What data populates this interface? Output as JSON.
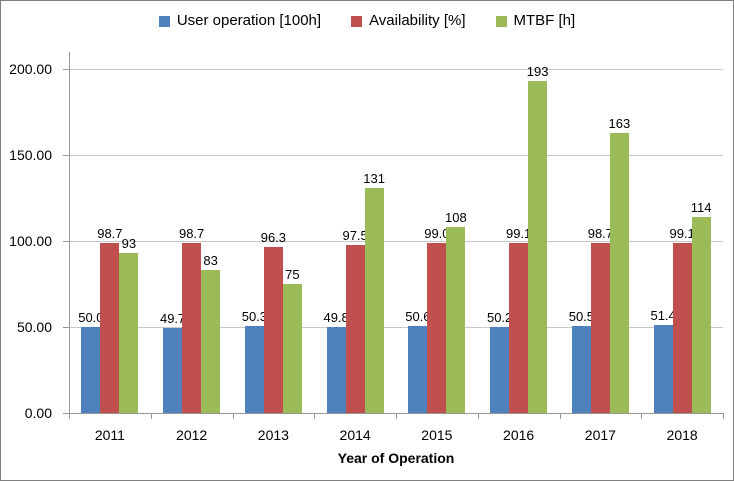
{
  "legend": {
    "items": [
      {
        "label": "User operation [100h]",
        "color": "#4F81BD"
      },
      {
        "label": "Availability [%]",
        "color": "#C0504D"
      },
      {
        "label": "MTBF [h]",
        "color": "#9BBB59"
      }
    ]
  },
  "chart_data": {
    "type": "bar",
    "categories": [
      "2011",
      "2012",
      "2013",
      "2014",
      "2015",
      "2016",
      "2017",
      "2018"
    ],
    "series": [
      {
        "name": "User operation [100h]",
        "color": "#4F81BD",
        "values": [
          50.0,
          49.7,
          50.3,
          49.8,
          50.6,
          50.2,
          50.5,
          51.4
        ],
        "labels": [
          "50.0",
          "49.7",
          "50.3",
          "49.8",
          "50.6",
          "50.2",
          "50.5",
          "51.4"
        ]
      },
      {
        "name": "Availability [%]",
        "color": "#C0504D",
        "values": [
          98.7,
          98.7,
          96.3,
          97.5,
          99.0,
          99.1,
          98.7,
          99.1
        ],
        "labels": [
          "98.7",
          "98.7",
          "96.3",
          "97.5",
          "99.0",
          "99.1",
          "98.7",
          "99.1"
        ]
      },
      {
        "name": "MTBF [h]",
        "color": "#9BBB59",
        "values": [
          93,
          83,
          75,
          131,
          108,
          193,
          163,
          114
        ],
        "labels": [
          "93",
          "83",
          "75",
          "131",
          "108",
          "193",
          "163",
          "114"
        ]
      }
    ],
    "xlabel": "Year of Operation",
    "ylabel": "",
    "ylim": [
      0,
      200
    ],
    "y_tick_values": [
      0,
      50,
      100,
      150,
      200
    ],
    "y_tick_labels": [
      "0.00",
      "50.00",
      "100.00",
      "150.00",
      "200.00"
    ],
    "grid": true,
    "legend_position": "top"
  },
  "colors": {
    "grid": "#C9C9C9",
    "axis": "#969696",
    "frame_border": "#7F7F7F",
    "text": "#000000"
  }
}
